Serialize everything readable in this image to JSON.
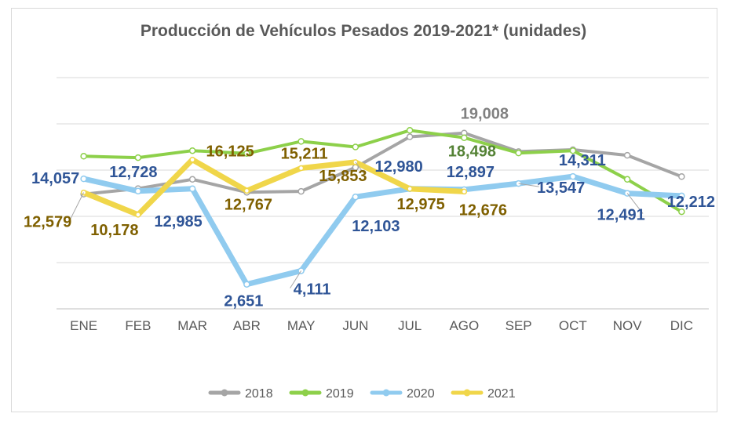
{
  "chart_data": {
    "type": "line",
    "title": "Producción de Vehículos Pesados 2019-2021* (unidades)",
    "xlabel": "",
    "ylabel": "",
    "categories": [
      "ENE",
      "FEB",
      "MAR",
      "ABR",
      "MAY",
      "JUN",
      "JUL",
      "AGO",
      "SEP",
      "OCT",
      "NOV",
      "DIC"
    ],
    "ylim": [
      0,
      25000
    ],
    "grid": true,
    "legend": "bottom",
    "series": [
      {
        "name": "2018",
        "color": "#a5a5a5",
        "values": [
          12400,
          13000,
          14000,
          12600,
          12700,
          15300,
          18600,
          19008,
          17000,
          17200,
          16600,
          14300
        ]
      },
      {
        "name": "2019",
        "color": "#8dd04a",
        "values": [
          16500,
          16350,
          17100,
          16800,
          18100,
          17500,
          19300,
          18498,
          16850,
          17100,
          14000,
          10500
        ]
      },
      {
        "name": "2020",
        "color": "#90cbef",
        "values": [
          14057,
          12728,
          12985,
          2651,
          4111,
          12103,
          12980,
          12897,
          13547,
          14311,
          12491,
          12212
        ]
      },
      {
        "name": "2021",
        "color": "#f0d64a",
        "values": [
          12579,
          10178,
          16125,
          12767,
          15211,
          15853,
          12975,
          12676,
          null,
          null,
          null,
          null
        ]
      }
    ],
    "data_labels": [
      {
        "series": "2018",
        "index": 7,
        "text": "19,008",
        "color": "#808080"
      },
      {
        "series": "2019",
        "index": 7,
        "text": "18,498",
        "color": "#548235"
      },
      {
        "series": "2020",
        "index": 0,
        "text": "14,057",
        "color": "#2f5597"
      },
      {
        "series": "2020",
        "index": 1,
        "text": "12,728",
        "color": "#2f5597"
      },
      {
        "series": "2020",
        "index": 2,
        "text": "12,985",
        "color": "#2f5597"
      },
      {
        "series": "2020",
        "index": 3,
        "text": "2,651",
        "color": "#2f5597"
      },
      {
        "series": "2020",
        "index": 4,
        "text": "4,111",
        "color": "#2f5597"
      },
      {
        "series": "2020",
        "index": 5,
        "text": "12,103",
        "color": "#2f5597"
      },
      {
        "series": "2020",
        "index": 6,
        "text": "12,980",
        "color": "#2f5597"
      },
      {
        "series": "2020",
        "index": 7,
        "text": "12,897",
        "color": "#2f5597"
      },
      {
        "series": "2020",
        "index": 8,
        "text": "13,547",
        "color": "#2f5597"
      },
      {
        "series": "2020",
        "index": 9,
        "text": "14,311",
        "color": "#2f5597"
      },
      {
        "series": "2020",
        "index": 10,
        "text": "12,491",
        "color": "#2f5597"
      },
      {
        "series": "2020",
        "index": 11,
        "text": "12,212",
        "color": "#2f5597"
      },
      {
        "series": "2021",
        "index": 0,
        "text": "12,579",
        "color": "#7f6000"
      },
      {
        "series": "2021",
        "index": 1,
        "text": "10,178",
        "color": "#7f6000"
      },
      {
        "series": "2021",
        "index": 2,
        "text": "16,125",
        "color": "#7f6000"
      },
      {
        "series": "2021",
        "index": 3,
        "text": "12,767",
        "color": "#7f6000"
      },
      {
        "series": "2021",
        "index": 4,
        "text": "15,211",
        "color": "#7f6000"
      },
      {
        "series": "2021",
        "index": 5,
        "text": "15,853",
        "color": "#7f6000"
      },
      {
        "series": "2021",
        "index": 6,
        "text": "12,975",
        "color": "#7f6000"
      },
      {
        "series": "2021",
        "index": 7,
        "text": "12,676",
        "color": "#7f6000"
      }
    ]
  }
}
